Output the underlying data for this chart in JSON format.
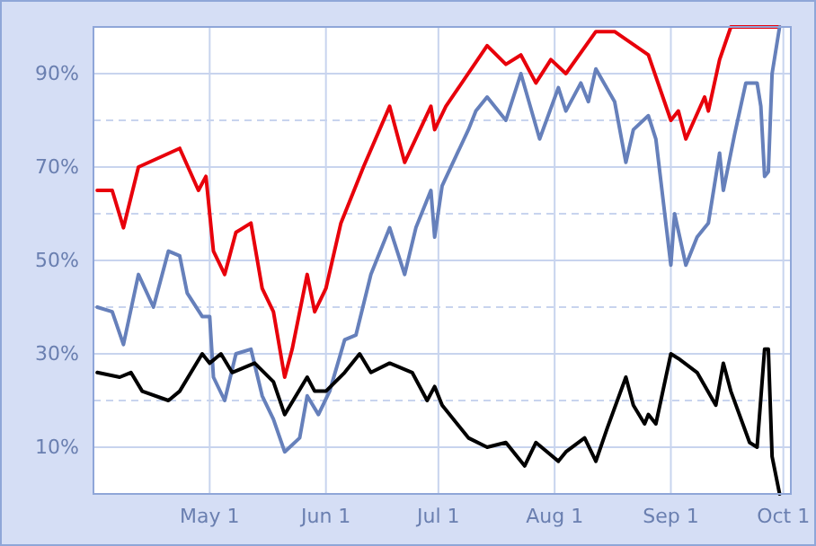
{
  "chart_data": {
    "type": "line",
    "xlim": [
      "--03-31",
      "--10-03"
    ],
    "xticks": [
      {
        "value": "--05-01",
        "label": "May 1"
      },
      {
        "value": "--06-01",
        "label": "Jun 1"
      },
      {
        "value": "--07-01",
        "label": "Jul 1"
      },
      {
        "value": "--08-01",
        "label": "Aug 1"
      },
      {
        "value": "--09-01",
        "label": "Sep 1"
      },
      {
        "value": "--10-01",
        "label": "Oct 1"
      }
    ],
    "ylim": [
      0,
      100
    ],
    "yticks": [
      {
        "value": 10,
        "label": "10%"
      },
      {
        "value": 20,
        "label": null
      },
      {
        "value": 30,
        "label": "30%"
      },
      {
        "value": 40,
        "label": null
      },
      {
        "value": 50,
        "label": "50%"
      },
      {
        "value": 60,
        "label": null
      },
      {
        "value": 70,
        "label": "70%"
      },
      {
        "value": 80,
        "label": null
      },
      {
        "value": 90,
        "label": "90%"
      }
    ],
    "grid": true,
    "marker": "none",
    "line_style": "solid",
    "series": [
      {
        "color": "#e8000b",
        "x": [
          "--04-01",
          "--04-05",
          "--04-08",
          "--04-12",
          "--04-23",
          "--04-28",
          "--04-30",
          "--05-02",
          "--05-05",
          "--05-08",
          "--05-12",
          "--05-15",
          "--05-18",
          "--05-21",
          "--05-23",
          "--05-27",
          "--05-29",
          "--06-01",
          "--06-05",
          "--06-11",
          "--06-18",
          "--06-22",
          "--06-29",
          "--06-30",
          "--07-03",
          "--07-14",
          "--07-19",
          "--07-23",
          "--07-27",
          "--07-31",
          "--08-04",
          "--08-12",
          "--08-17",
          "--08-26",
          "--09-01",
          "--09-03",
          "--09-05",
          "--09-10",
          "--09-11",
          "--09-14",
          "--09-17",
          "--09-28",
          "--09-30"
        ],
        "values": [
          65,
          65,
          57,
          70,
          74,
          65,
          68,
          52,
          47,
          56,
          58,
          44,
          39,
          25,
          31,
          47,
          39,
          44,
          58,
          70,
          83,
          71,
          83,
          78,
          83,
          96,
          92,
          94,
          88,
          93,
          90,
          99,
          99,
          94,
          80,
          82,
          76,
          85,
          82,
          93,
          100,
          100,
          100
        ]
      },
      {
        "color": "#6680bb",
        "x": [
          "--04-01",
          "--04-05",
          "--04-08",
          "--04-12",
          "--04-16",
          "--04-20",
          "--04-23",
          "--04-25",
          "--04-29",
          "--05-01",
          "--05-02",
          "--05-05",
          "--05-08",
          "--05-12",
          "--05-15",
          "--05-18",
          "--05-21",
          "--05-25",
          "--05-27",
          "--05-30",
          "--06-02",
          "--06-06",
          "--06-09",
          "--06-13",
          "--06-18",
          "--06-22",
          "--06-25",
          "--06-29",
          "--06-30",
          "--07-02",
          "--07-09",
          "--07-11",
          "--07-14",
          "--07-19",
          "--07-23",
          "--07-28",
          "--08-02",
          "--08-04",
          "--08-08",
          "--08-10",
          "--08-12",
          "--08-17",
          "--08-20",
          "--08-22",
          "--08-26",
          "--08-28",
          "--09-01",
          "--09-02",
          "--09-05",
          "--09-08",
          "--09-11",
          "--09-14",
          "--09-15",
          "--09-18",
          "--09-21",
          "--09-24",
          "--09-25",
          "--09-26",
          "--09-27",
          "--09-28",
          "--09-30"
        ],
        "values": [
          40,
          39,
          32,
          47,
          40,
          52,
          51,
          43,
          38,
          38,
          25,
          20,
          30,
          31,
          21,
          16,
          9,
          12,
          21,
          17,
          22,
          33,
          34,
          47,
          57,
          47,
          57,
          65,
          55,
          66,
          78,
          82,
          85,
          80,
          90,
          76,
          87,
          82,
          88,
          84,
          91,
          84,
          71,
          78,
          81,
          76,
          49,
          60,
          49,
          55,
          58,
          73,
          65,
          77,
          88,
          88,
          83,
          68,
          69,
          90,
          100
        ]
      },
      {
        "color": "#000000",
        "x": [
          "--04-01",
          "--04-07",
          "--04-10",
          "--04-13",
          "--04-20",
          "--04-23",
          "--04-29",
          "--05-01",
          "--05-04",
          "--05-07",
          "--05-13",
          "--05-18",
          "--05-21",
          "--05-27",
          "--05-29",
          "--06-01",
          "--06-06",
          "--06-10",
          "--06-13",
          "--06-18",
          "--06-24",
          "--06-28",
          "--06-30",
          "--07-02",
          "--07-09",
          "--07-14",
          "--07-19",
          "--07-24",
          "--07-27",
          "--08-02",
          "--08-04",
          "--08-09",
          "--08-12",
          "--08-15",
          "--08-20",
          "--08-22",
          "--08-25",
          "--08-26",
          "--08-28",
          "--09-01",
          "--09-03",
          "--09-08",
          "--09-13",
          "--09-15",
          "--09-17",
          "--09-22",
          "--09-24",
          "--09-26",
          "--09-27",
          "--09-28",
          "--09-30"
        ],
        "values": [
          26,
          25,
          26,
          22,
          20,
          22,
          30,
          28,
          30,
          26,
          28,
          24,
          17,
          25,
          22,
          22,
          26,
          30,
          26,
          28,
          26,
          20,
          23,
          19,
          12,
          10,
          11,
          6,
          11,
          7,
          9,
          12,
          7,
          14,
          25,
          19,
          15,
          17,
          15,
          30,
          29,
          26,
          19,
          28,
          22,
          11,
          10,
          31,
          31,
          8,
          0
        ]
      }
    ]
  }
}
